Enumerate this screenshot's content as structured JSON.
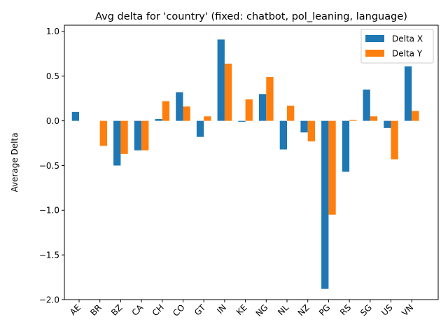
{
  "chart_data": {
    "type": "bar",
    "title": "Avg delta for 'country' (fixed: chatbot, pol_leaning, language)",
    "xlabel": "",
    "ylabel": "Average Delta",
    "ylim": [
      -2.0,
      1.07
    ],
    "yticks": [
      1.0,
      0.5,
      0.0,
      -0.5,
      -1.0,
      -1.5,
      -2.0
    ],
    "ytick_labels": [
      "1.0",
      "0.5",
      "0.0",
      "−0.5",
      "−1.0",
      "−1.5",
      "−2.0"
    ],
    "categories": [
      "AE",
      "BR",
      "BZ",
      "CA",
      "CH",
      "CO",
      "GT",
      "IN",
      "KE",
      "NG",
      "NL",
      "NZ",
      "PG",
      "RS",
      "SG",
      "US",
      "VN"
    ],
    "series": [
      {
        "name": "Delta X",
        "color": "#1f77b4",
        "values": [
          0.1,
          null,
          -0.5,
          -0.33,
          0.02,
          0.32,
          -0.18,
          0.91,
          -0.01,
          0.3,
          -0.32,
          -0.13,
          -1.88,
          -0.57,
          0.35,
          -0.08,
          0.61
        ]
      },
      {
        "name": "Delta Y",
        "color": "#ff7f0e",
        "values": [
          null,
          -0.28,
          -0.37,
          -0.33,
          0.22,
          0.16,
          0.05,
          0.64,
          0.24,
          0.49,
          0.17,
          -0.23,
          -1.05,
          0.01,
          0.05,
          -0.43,
          0.11
        ]
      }
    ],
    "legend": "top-right",
    "grid": false
  }
}
